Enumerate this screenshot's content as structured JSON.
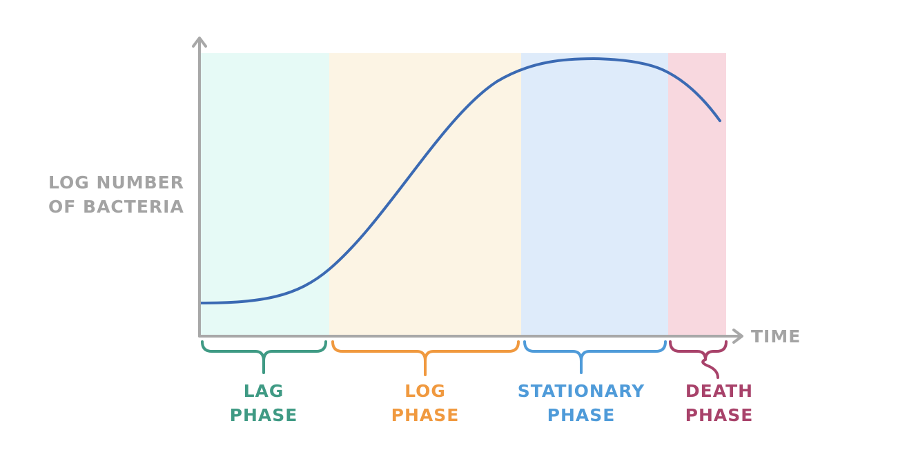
{
  "y_axis_label": [
    "LOG NUMBER",
    "OF BACTERIA"
  ],
  "x_axis_label": "TIME",
  "phases": [
    {
      "label": [
        "LAG",
        "PHASE"
      ]
    },
    {
      "label": [
        "LOG",
        "PHASE"
      ]
    },
    {
      "label": [
        "STATIONARY",
        "PHASE"
      ]
    },
    {
      "label": [
        "DEATH",
        "PHASE"
      ]
    }
  ]
}
